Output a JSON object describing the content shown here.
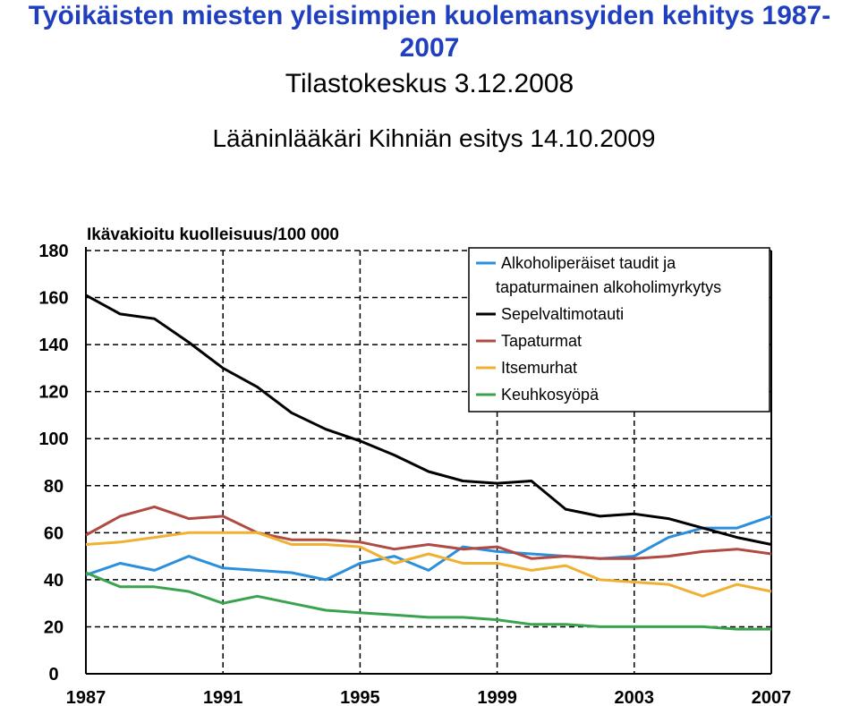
{
  "header": {
    "title": "Työikäisten miesten yleisimpien kuolemansyiden kehitys 1987-2007",
    "source": "Tilastokeskus 3.12.2008",
    "presenter": "Lääninlääkäri Kihniän esitys 14.10.2009"
  },
  "chart_data": {
    "type": "line",
    "title": "Työikäisten miesten yleisimpien kuolemansyiden kehitys 1987-2007",
    "ylabel": "Ikävakioitu kuolleisuus/100 000",
    "xlabel": "",
    "ylim": [
      0,
      180
    ],
    "xlim": [
      1987,
      2007
    ],
    "yticks": [
      "0",
      "20",
      "40",
      "60",
      "80",
      "100",
      "120",
      "140",
      "160",
      "180"
    ],
    "xticks": [
      "1987",
      "1991",
      "1995",
      "1999",
      "2003",
      "2007"
    ],
    "grid": true,
    "legend_position": "top-right",
    "x": [
      1987,
      1988,
      1989,
      1990,
      1991,
      1992,
      1993,
      1994,
      1995,
      1996,
      1997,
      1998,
      1999,
      2000,
      2001,
      2002,
      2003,
      2004,
      2005,
      2006,
      2007
    ],
    "series": [
      {
        "name": "Alkoholiperäiset taudit ja tapaturmainen alkoholimyrkytys",
        "legend_lines": [
          "Alkoholiperäiset taudit ja",
          "tapaturmainen alkoholimyrkytys"
        ],
        "color": "#2b8fdc",
        "values": [
          42,
          47,
          44,
          50,
          45,
          44,
          43,
          40,
          47,
          50,
          44,
          54,
          52,
          51,
          50,
          49,
          50,
          58,
          62,
          62,
          67
        ]
      },
      {
        "name": "Sepelvaltimotauti",
        "legend_lines": [
          "Sepelvaltimotauti"
        ],
        "color": "#000000",
        "values": [
          161,
          153,
          151,
          141,
          130,
          122,
          111,
          104,
          99,
          93,
          86,
          82,
          81,
          82,
          70,
          67,
          68,
          66,
          62,
          58,
          55
        ]
      },
      {
        "name": "Tapaturmat",
        "legend_lines": [
          "Tapaturmat"
        ],
        "color": "#b04a42",
        "values": [
          59,
          67,
          71,
          66,
          67,
          60,
          57,
          57,
          56,
          53,
          55,
          53,
          54,
          49,
          50,
          49,
          49,
          50,
          52,
          53,
          51
        ]
      },
      {
        "name": "Itsemurhat",
        "legend_lines": [
          "Itsemurhat"
        ],
        "color": "#f0b133",
        "values": [
          55,
          56,
          58,
          60,
          60,
          60,
          55,
          55,
          54,
          47,
          51,
          47,
          47,
          44,
          46,
          40,
          39,
          38,
          33,
          38,
          35
        ]
      },
      {
        "name": "Keuhkosyöpä",
        "legend_lines": [
          "Keuhkosyöpä"
        ],
        "color": "#3aa34e",
        "values": [
          43,
          37,
          37,
          35,
          30,
          33,
          30,
          27,
          26,
          25,
          24,
          24,
          23,
          21,
          21,
          20,
          20,
          20,
          20,
          19,
          19
        ]
      }
    ]
  }
}
